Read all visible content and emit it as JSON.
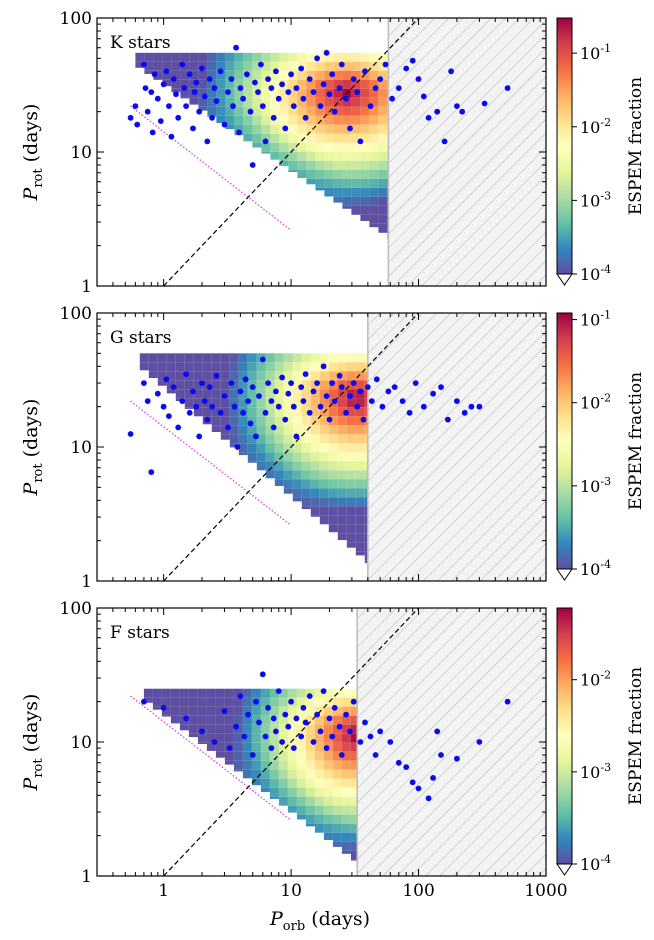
{
  "figure": {
    "xlabel_main": "P",
    "xlabel_sub": "orb",
    "xlabel_unit": " (days)",
    "ylabel_main": "P",
    "ylabel_sub": "rot",
    "ylabel_unit": " (days)",
    "colorbar_label": "ESPEM fraction"
  },
  "chart_data": [
    {
      "type": "heatmap",
      "label": "K stars",
      "x_scale": "log",
      "y_scale": "log",
      "xlim": [
        0.3,
        1000
      ],
      "ylim": [
        1,
        100
      ],
      "x_ticks": [
        1,
        10,
        100,
        1000
      ],
      "y_ticks": [
        1,
        10,
        100
      ],
      "colorbar": {
        "scale": "log",
        "range": [
          0.0001,
          0.3
        ],
        "ticks": [
          {
            "base": "10",
            "exp": "-4",
            "value": 0.0001
          },
          {
            "base": "10",
            "exp": "-3",
            "value": 0.001
          },
          {
            "base": "10",
            "exp": "-2",
            "value": 0.01
          },
          {
            "base": "10",
            "exp": "-1",
            "value": 0.1
          }
        ]
      },
      "excluded_region_x_min": 58,
      "heatmap": {
        "x_range": [
          0.6,
          58
        ],
        "y_top": 55,
        "y_bottom_min": 2.2,
        "peak_x": 25,
        "peak_y": 30
      },
      "observed_planets": [
        [
          0.55,
          18
        ],
        [
          0.6,
          22
        ],
        [
          0.62,
          16
        ],
        [
          0.7,
          45
        ],
        [
          0.72,
          30
        ],
        [
          0.75,
          20
        ],
        [
          0.8,
          28
        ],
        [
          0.82,
          14
        ],
        [
          0.85,
          38
        ],
        [
          0.9,
          25
        ],
        [
          0.95,
          17
        ],
        [
          1.0,
          32
        ],
        [
          1.05,
          40
        ],
        [
          1.1,
          22
        ],
        [
          1.15,
          13
        ],
        [
          1.2,
          35
        ],
        [
          1.25,
          27
        ],
        [
          1.3,
          18
        ],
        [
          1.4,
          45
        ],
        [
          1.45,
          30
        ],
        [
          1.5,
          22
        ],
        [
          1.6,
          38
        ],
        [
          1.7,
          15
        ],
        [
          1.75,
          28
        ],
        [
          1.8,
          33
        ],
        [
          1.9,
          20
        ],
        [
          2.0,
          42
        ],
        [
          2.1,
          26
        ],
        [
          2.2,
          12
        ],
        [
          2.3,
          35
        ],
        [
          2.4,
          18
        ],
        [
          2.5,
          30
        ],
        [
          2.6,
          24
        ],
        [
          2.8,
          40
        ],
        [
          3.0,
          16
        ],
        [
          3.2,
          28
        ],
        [
          3.4,
          35
        ],
        [
          3.5,
          22
        ],
        [
          3.7,
          60
        ],
        [
          3.9,
          14
        ],
        [
          4.0,
          30
        ],
        [
          4.2,
          25
        ],
        [
          4.5,
          38
        ],
        [
          4.8,
          20
        ],
        [
          5.0,
          8
        ],
        [
          5.2,
          33
        ],
        [
          5.5,
          28
        ],
        [
          5.8,
          45
        ],
        [
          6.0,
          22
        ],
        [
          6.3,
          12
        ],
        [
          6.6,
          35
        ],
        [
          7.0,
          30
        ],
        [
          7.3,
          18
        ],
        [
          7.6,
          40
        ],
        [
          8.0,
          25
        ],
        [
          8.5,
          32
        ],
        [
          9.0,
          15
        ],
        [
          9.5,
          28
        ],
        [
          10,
          38
        ],
        [
          10.5,
          22
        ],
        [
          11,
          30
        ],
        [
          12,
          42
        ],
        [
          12.5,
          25
        ],
        [
          13,
          18
        ],
        [
          14,
          35
        ],
        [
          15,
          28
        ],
        [
          16,
          50
        ],
        [
          17,
          22
        ],
        [
          18,
          32
        ],
        [
          19,
          55
        ],
        [
          20,
          27
        ],
        [
          21,
          38
        ],
        [
          22,
          20
        ],
        [
          24,
          30
        ],
        [
          25,
          45
        ],
        [
          27,
          25
        ],
        [
          29,
          15
        ],
        [
          31,
          35
        ],
        [
          33,
          28
        ],
        [
          35,
          12
        ],
        [
          38,
          40
        ],
        [
          42,
          22
        ],
        [
          46,
          30
        ],
        [
          50,
          35
        ],
        [
          55,
          45
        ],
        [
          62,
          25
        ],
        [
          70,
          30
        ],
        [
          80,
          42
        ],
        [
          90,
          48
        ],
        [
          100,
          35
        ],
        [
          110,
          26
        ],
        [
          120,
          18
        ],
        [
          140,
          20
        ],
        [
          160,
          12
        ],
        [
          180,
          40
        ],
        [
          200,
          22
        ],
        [
          220,
          20
        ],
        [
          330,
          23
        ],
        [
          500,
          30
        ]
      ]
    },
    {
      "type": "heatmap",
      "label": "G stars",
      "x_scale": "log",
      "y_scale": "log",
      "xlim": [
        0.3,
        1000
      ],
      "ylim": [
        1,
        100
      ],
      "x_ticks": [
        1,
        10,
        100,
        1000
      ],
      "y_ticks": [
        1,
        10,
        100
      ],
      "colorbar": {
        "scale": "log",
        "range": [
          0.0001,
          0.12
        ],
        "ticks": [
          {
            "base": "10",
            "exp": "-4",
            "value": 0.0001
          },
          {
            "base": "10",
            "exp": "-3",
            "value": 0.001
          },
          {
            "base": "10",
            "exp": "-2",
            "value": 0.01
          },
          {
            "base": "10",
            "exp": "-1",
            "value": 0.1
          }
        ]
      },
      "excluded_region_x_min": 40,
      "heatmap": {
        "x_range": [
          0.65,
          40
        ],
        "y_top": 50,
        "y_bottom_min": 1.3,
        "peak_x": 30,
        "peak_y": 25
      },
      "observed_planets": [
        [
          0.55,
          12.5
        ],
        [
          0.7,
          30
        ],
        [
          0.75,
          22
        ],
        [
          0.8,
          6.5
        ],
        [
          0.9,
          25
        ],
        [
          1.0,
          20
        ],
        [
          1.05,
          32
        ],
        [
          1.1,
          17
        ],
        [
          1.2,
          28
        ],
        [
          1.3,
          14
        ],
        [
          1.4,
          22
        ],
        [
          1.5,
          35
        ],
        [
          1.6,
          18
        ],
        [
          1.7,
          26
        ],
        [
          1.8,
          20
        ],
        [
          1.9,
          12
        ],
        [
          2.0,
          30
        ],
        [
          2.1,
          22
        ],
        [
          2.2,
          16
        ],
        [
          2.3,
          28
        ],
        [
          2.4,
          20
        ],
        [
          2.6,
          34
        ],
        [
          2.8,
          18
        ],
        [
          3.0,
          24
        ],
        [
          3.2,
          14
        ],
        [
          3.4,
          30
        ],
        [
          3.6,
          20
        ],
        [
          3.8,
          10
        ],
        [
          4.0,
          26
        ],
        [
          4.2,
          18
        ],
        [
          4.4,
          32
        ],
        [
          4.6,
          22
        ],
        [
          4.8,
          15
        ],
        [
          5.0,
          28
        ],
        [
          5.3,
          12
        ],
        [
          5.6,
          24
        ],
        [
          6.0,
          45
        ],
        [
          6.3,
          18
        ],
        [
          6.6,
          30
        ],
        [
          7.0,
          22
        ],
        [
          7.3,
          14
        ],
        [
          7.6,
          26
        ],
        [
          8.0,
          20
        ],
        [
          8.5,
          33
        ],
        [
          9.0,
          16
        ],
        [
          9.5,
          25
        ],
        [
          10,
          30
        ],
        [
          10.5,
          20
        ],
        [
          11,
          12
        ],
        [
          12,
          28
        ],
        [
          12.5,
          22
        ],
        [
          13,
          35
        ],
        [
          14,
          18
        ],
        [
          15,
          26
        ],
        [
          16,
          30
        ],
        [
          17,
          20
        ],
        [
          18,
          40
        ],
        [
          19,
          24
        ],
        [
          20,
          16
        ],
        [
          21,
          30
        ],
        [
          22,
          22
        ],
        [
          24,
          34
        ],
        [
          25,
          28
        ],
        [
          27,
          18
        ],
        [
          29,
          24
        ],
        [
          31,
          30
        ],
        [
          33,
          20
        ],
        [
          35,
          26
        ],
        [
          37,
          16
        ],
        [
          40,
          28
        ],
        [
          43,
          22
        ],
        [
          47,
          32
        ],
        [
          52,
          20
        ],
        [
          58,
          26
        ],
        [
          65,
          28
        ],
        [
          75,
          22
        ],
        [
          85,
          18
        ],
        [
          95,
          30
        ],
        [
          110,
          20
        ],
        [
          130,
          25
        ],
        [
          150,
          28
        ],
        [
          170,
          16
        ],
        [
          200,
          22
        ],
        [
          230,
          18
        ],
        [
          260,
          20
        ],
        [
          300,
          20
        ]
      ]
    },
    {
      "type": "heatmap",
      "label": "F stars",
      "x_scale": "log",
      "y_scale": "log",
      "xlim": [
        0.3,
        1000
      ],
      "ylim": [
        1,
        100
      ],
      "x_ticks": [
        1,
        10,
        100,
        1000
      ],
      "y_ticks": [
        1,
        10,
        100
      ],
      "colorbar": {
        "scale": "log",
        "range": [
          0.0001,
          0.06
        ],
        "ticks": [
          {
            "base": "10",
            "exp": "-4",
            "value": 0.0001
          },
          {
            "base": "10",
            "exp": "-3",
            "value": 0.001
          },
          {
            "base": "10",
            "exp": "-2",
            "value": 0.01
          }
        ]
      },
      "excluded_region_x_min": 33,
      "heatmap": {
        "x_range": [
          0.7,
          33
        ],
        "y_top": 25,
        "y_bottom_min": 1.2,
        "peak_x": 30,
        "peak_y": 12
      },
      "observed_planets": [
        [
          0.7,
          20
        ],
        [
          1.0,
          18
        ],
        [
          1.5,
          15
        ],
        [
          2.0,
          12
        ],
        [
          2.5,
          10
        ],
        [
          3.0,
          17
        ],
        [
          3.3,
          9
        ],
        [
          3.7,
          13
        ],
        [
          4.0,
          22
        ],
        [
          4.3,
          11
        ],
        [
          4.6,
          16
        ],
        [
          5.0,
          8
        ],
        [
          5.3,
          20
        ],
        [
          5.6,
          14
        ],
        [
          6.0,
          32
        ],
        [
          6.3,
          11
        ],
        [
          6.6,
          18
        ],
        [
          7.0,
          9
        ],
        [
          7.3,
          15
        ],
        [
          7.6,
          12
        ],
        [
          8.0,
          24
        ],
        [
          8.5,
          10
        ],
        [
          9.0,
          16
        ],
        [
          9.5,
          13
        ],
        [
          10,
          20
        ],
        [
          10.5,
          9
        ],
        [
          11,
          15
        ],
        [
          12,
          11
        ],
        [
          12.5,
          18
        ],
        [
          13,
          14
        ],
        [
          14,
          22
        ],
        [
          15,
          10
        ],
        [
          16,
          16
        ],
        [
          17,
          12
        ],
        [
          18,
          24
        ],
        [
          19,
          9
        ],
        [
          20,
          15
        ],
        [
          21,
          11
        ],
        [
          22,
          18
        ],
        [
          24,
          13
        ],
        [
          25,
          8
        ],
        [
          27,
          16
        ],
        [
          29,
          12
        ],
        [
          31,
          20
        ],
        [
          35,
          10
        ],
        [
          38,
          14
        ],
        [
          42,
          11
        ],
        [
          46,
          8
        ],
        [
          50,
          12
        ],
        [
          60,
          10
        ],
        [
          70,
          7
        ],
        [
          80,
          6.5
        ],
        [
          90,
          5
        ],
        [
          100,
          4.5
        ],
        [
          120,
          3.8
        ],
        [
          130,
          5.4
        ],
        [
          140,
          12
        ],
        [
          150,
          8
        ],
        [
          200,
          7.5
        ],
        [
          300,
          10
        ],
        [
          500,
          20
        ]
      ]
    }
  ]
}
